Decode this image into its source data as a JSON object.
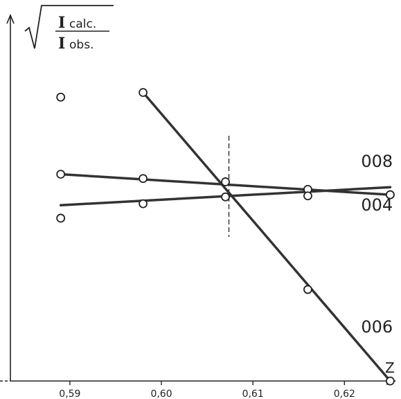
{
  "chart_data": {
    "type": "line",
    "xlabel": "Z",
    "ylabel": {
      "numerator_symbol": "I",
      "numerator_sub": "calc.",
      "denominator_symbol": "I",
      "denominator_sub": "obs."
    },
    "xlim": [
      0.5835,
      0.6255
    ],
    "ylim": [
      0,
      1
    ],
    "x_ticks": [
      {
        "value": 0.59,
        "label": "0,59"
      },
      {
        "value": 0.6,
        "label": "0,60"
      },
      {
        "value": 0.61,
        "label": "0,61"
      },
      {
        "value": 0.62,
        "label": "0,62"
      }
    ],
    "reference_line": {
      "x": 0.607,
      "style": "dashed"
    },
    "series": [
      {
        "name": "008",
        "line": [
          [
            0.589,
            0.574
          ],
          [
            0.625,
            0.517
          ]
        ],
        "points": [
          [
            0.589,
            0.574
          ],
          [
            0.598,
            0.562
          ],
          [
            0.616,
            0.532
          ],
          [
            0.625,
            0.517
          ]
        ]
      },
      {
        "name": "004",
        "line": [
          [
            0.589,
            0.488
          ],
          [
            0.625,
            0.538
          ]
        ],
        "points": [
          [
            0.589,
            0.452
          ],
          [
            0.598,
            0.492
          ],
          [
            0.607,
            0.511
          ],
          [
            0.616,
            0.514
          ],
          [
            0.625,
            0.517
          ]
        ]
      },
      {
        "name": "006",
        "line": [
          [
            0.598,
            0.801
          ],
          [
            0.625,
            0.0
          ]
        ],
        "points": [
          [
            0.589,
            0.788
          ],
          [
            0.598,
            0.801
          ],
          [
            0.607,
            0.553
          ],
          [
            0.616,
            0.254
          ],
          [
            0.625,
            0.0
          ]
        ]
      }
    ]
  },
  "grid": false
}
